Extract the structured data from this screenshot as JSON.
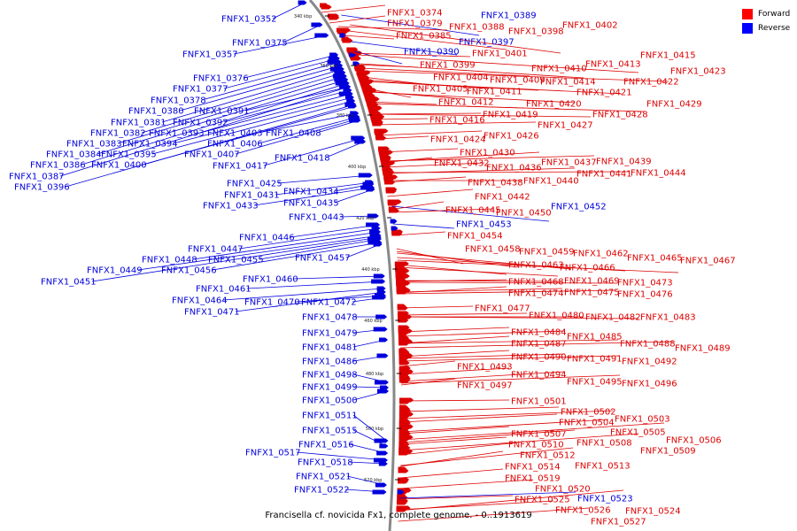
{
  "caption": "Francisella cf. novicida Fx1, complete genome. - 0..1913619",
  "legend": [
    {
      "label": "Forward",
      "color": "#ff0000"
    },
    {
      "label": "Reverse",
      "color": "#0000ff"
    }
  ],
  "colors": {
    "forward": "#dd0000",
    "reverse": "#0000dd",
    "backbone": "#888888"
  },
  "ticks": [
    "340 kbp",
    "360 kbp",
    "380 kbp",
    "400 kbp",
    "420 kbp",
    "440 kbp",
    "460 kbp",
    "480 kbp",
    "500 kbp",
    "520 kbp"
  ],
  "genes": {
    "reverse": [
      "FNFX1_0352",
      "FNFX1_0375",
      "FNFX1_0357",
      "FNFX1_0376",
      "FNFX1_0377",
      "FNFX1_0378",
      "FNFX1_0380",
      "FNFX1_0391",
      "FNFX1_0381",
      "FNFX1_0392",
      "FNFX1_0382",
      "FNFX1_0393",
      "FNFX1_0403",
      "FNFX1_0408",
      "FNFX1_0383",
      "FNFX1_0394",
      "FNFX1_0406",
      "FNFX1_0384",
      "FNFX1_0395",
      "FNFX1_0407",
      "FNFX1_0386",
      "FNFX1_0400",
      "FNFX1_0418",
      "FNFX1_0417",
      "FNFX1_0387",
      "FNFX1_0396",
      "FNFX1_0425",
      "FNFX1_0431",
      "FNFX1_0434",
      "FNFX1_0433",
      "FNFX1_0435",
      "FNFX1_0443",
      "FNFX1_0446",
      "FNFX1_0447",
      "FNFX1_0448",
      "FNFX1_0455",
      "FNFX1_0457",
      "FNFX1_0449",
      "FNFX1_0456",
      "FNFX1_0451",
      "FNFX1_0460",
      "FNFX1_0461",
      "FNFX1_0464",
      "FNFX1_0470",
      "FNFX1_0472",
      "FNFX1_0471",
      "FNFX1_0478",
      "FNFX1_0479",
      "FNFX1_0481",
      "FNFX1_0486",
      "FNFX1_0498",
      "FNFX1_0499",
      "FNFX1_0500",
      "FNFX1_0511",
      "FNFX1_0515",
      "FNFX1_0516",
      "FNFX1_0517",
      "FNFX1_0518",
      "FNFX1_0521",
      "FNFX1_0522",
      "FNFX1_0389",
      "FNFX1_0397",
      "FNFX1_0390",
      "FNFX1_0452",
      "FNFX1_0453",
      "FNFX1_0523"
    ],
    "forward": [
      "FNFX1_0374",
      "FNFX1_0379",
      "FNFX1_0388",
      "FNFX1_0385",
      "FNFX1_0398",
      "FNFX1_0402",
      "FNFX1_0401",
      "FNFX1_0399",
      "FNFX1_0415",
      "FNFX1_0410",
      "FNFX1_0413",
      "FNFX1_0423",
      "FNFX1_0404",
      "FNFX1_0409",
      "FNFX1_0414",
      "FNFX1_0422",
      "FNFX1_0405",
      "FNFX1_0411",
      "FNFX1_0421",
      "FNFX1_0412",
      "FNFX1_0420",
      "FNFX1_0429",
      "FNFX1_0419",
      "FNFX1_0428",
      "FNFX1_0416",
      "FNFX1_0427",
      "FNFX1_0426",
      "FNFX1_0424",
      "FNFX1_0430",
      "FNFX1_0437",
      "FNFX1_0439",
      "FNFX1_0432",
      "FNFX1_0436",
      "FNFX1_0441",
      "FNFX1_0444",
      "FNFX1_0438",
      "FNFX1_0440",
      "FNFX1_0442",
      "FNFX1_0445",
      "FNFX1_0450",
      "FNFX1_0454",
      "FNFX1_0458",
      "FNFX1_0459",
      "FNFX1_0462",
      "FNFX1_0465",
      "FNFX1_0467",
      "FNFX1_0463",
      "FNFX1_0466",
      "FNFX1_0468",
      "FNFX1_0469",
      "FNFX1_0473",
      "FNFX1_0474",
      "FNFX1_0475",
      "FNFX1_0476",
      "FNFX1_0477",
      "FNFX1_0480",
      "FNFX1_0482",
      "FNFX1_0483",
      "FNFX1_0484",
      "FNFX1_0485",
      "FNFX1_0487",
      "FNFX1_0488",
      "FNFX1_0489",
      "FNFX1_0490",
      "FNFX1_0491",
      "FNFX1_0492",
      "FNFX1_0493",
      "FNFX1_0494",
      "FNFX1_0495",
      "FNFX1_0496",
      "FNFX1_0497",
      "FNFX1_0501",
      "FNFX1_0502",
      "FNFX1_0503",
      "FNFX1_0504",
      "FNFX1_0505",
      "FNFX1_0506",
      "FNFX1_0507",
      "FNFX1_0508",
      "FNFX1_0509",
      "FNFX1_0510",
      "FNFX1_0512",
      "FNFX1_0513",
      "FNFX1_0514",
      "FNFX1_0519",
      "FNFX1_0520",
      "FNFX1_0524",
      "FNFX1_0525",
      "FNFX1_0526",
      "FNFX1_0527"
    ]
  }
}
